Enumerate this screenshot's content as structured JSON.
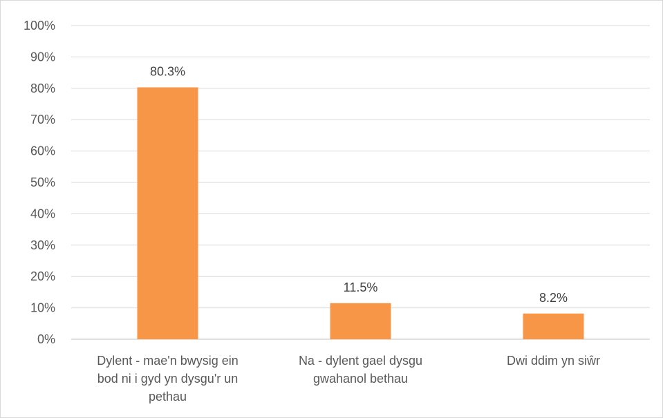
{
  "chart_data": {
    "type": "bar",
    "title": "",
    "xlabel": "",
    "ylabel": "",
    "categories": [
      [
        "Dylent - mae'n bwysig ein",
        "bod ni i gyd yn dysgu'r un",
        "pethau"
      ],
      [
        "Na - dylent gael dysgu",
        "gwahanol bethau"
      ],
      [
        "Dwi ddim yn siŵr"
      ]
    ],
    "values": [
      80.3,
      11.5,
      8.2
    ],
    "data_labels": [
      "80.3%",
      "11.5%",
      "8.2%"
    ],
    "ylim": [
      0,
      100
    ],
    "yticks": [
      0,
      10,
      20,
      30,
      40,
      50,
      60,
      70,
      80,
      90,
      100
    ],
    "ytick_labels": [
      "0%",
      "10%",
      "20%",
      "30%",
      "40%",
      "50%",
      "60%",
      "70%",
      "80%",
      "90%",
      "100%"
    ],
    "grid": true,
    "legend": "none",
    "colors": {
      "bar": "#F79646",
      "grid": "#d9d9d9",
      "axis": "#bfbfbf",
      "text": "#595959"
    }
  }
}
